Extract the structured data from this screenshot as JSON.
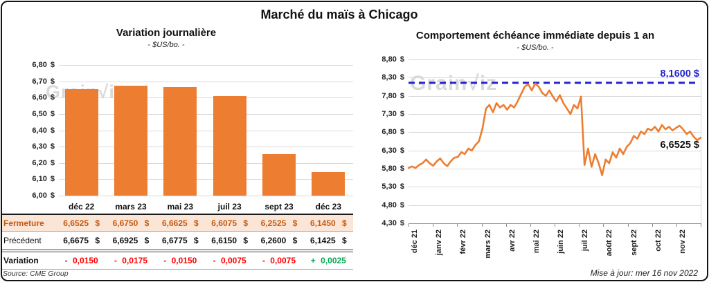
{
  "title": "Marché du maïs à Chicago",
  "left_chart": {
    "title": "Variation journalière",
    "subtitle": "- $US/bo. -",
    "watermark": "Grain√iz",
    "y_ticks": [
      "6,80 $",
      "6,70 $",
      "6,60 $",
      "6,50 $",
      "6,40 $",
      "6,30 $",
      "6,20 $",
      "6,10 $",
      "6,00 $"
    ]
  },
  "table": {
    "columns": [
      "",
      "déc 22",
      "mars 23",
      "mai 23",
      "juil 23",
      "sept 23",
      "déc 23"
    ],
    "close_row": {
      "label": "Fermeture",
      "values": [
        "6,6525 $",
        "6,6750 $",
        "6,6625 $",
        "6,6075 $",
        "6,2525 $",
        "6,1450 $"
      ]
    },
    "previous_row": {
      "label": "Précédent",
      "values": [
        "6,6675 $",
        "6,6925 $",
        "6,6775 $",
        "6,6150 $",
        "6,2600 $",
        "6,1425 $"
      ]
    },
    "variation_row": {
      "label": "Variation",
      "values": [
        "- 0,0150",
        "- 0,0175",
        "- 0,0150",
        "- 0,0075",
        "- 0,0075",
        "+ 0,0025"
      ],
      "trend": [
        "down",
        "down",
        "down",
        "down",
        "down",
        "up"
      ]
    },
    "source": "Source: CME Group"
  },
  "right_chart": {
    "title": "Comportement échéance immédiate depuis 1 an",
    "subtitle": "- $US/bo. -",
    "watermark": "Grain√iz",
    "y_ticks": [
      "8,80 $",
      "8,30 $",
      "7,80 $",
      "7,30 $",
      "6,80 $",
      "6,30 $",
      "5,80 $",
      "5,30 $",
      "4,80 $",
      "4,30 $"
    ],
    "x_ticks": [
      "déc 21",
      "janv 22",
      "févr 22",
      "mars 22",
      "avr 22",
      "mai 22",
      "juin 22",
      "juil 22",
      "août 22",
      "sept 22",
      "oct 22",
      "nov 22"
    ],
    "reference_label": "8,1600 $",
    "last_label": "6,6525 $",
    "updated": "Mise à jour: mer 16 nov 2022"
  },
  "colors": {
    "series_orange": "#ED7D31",
    "reference_blue": "#2222CC",
    "close_bg": "#FBE5D6",
    "close_text": "#C55A11",
    "negative_red": "#FF0000",
    "positive_green": "#00A550",
    "gridline": "#D9D9D9",
    "watermark_gray": "#C6C6C6"
  },
  "chart_data": [
    {
      "type": "bar",
      "title": "Variation journalière",
      "subtitle": "- $US/bo. -",
      "categories": [
        "déc 22",
        "mars 23",
        "mai 23",
        "juil 23",
        "sept 23",
        "déc 23"
      ],
      "values": [
        6.6525,
        6.675,
        6.6625,
        6.6075,
        6.2525,
        6.145
      ],
      "xlabel": "",
      "ylabel": "$US/bo.",
      "ylim": [
        6.0,
        6.8
      ],
      "ytick_step": 0.1,
      "grid": true,
      "bar_color": "#ED7D31"
    },
    {
      "type": "line",
      "title": "Comportement échéance immédiate depuis 1 an",
      "subtitle": "- $US/bo. -",
      "x_categories": [
        "déc 21",
        "janv 22",
        "févr 22",
        "mars 22",
        "avr 22",
        "mai 22",
        "juin 22",
        "juil 22",
        "août 22",
        "sept 22",
        "oct 22",
        "nov 22"
      ],
      "ylim": [
        4.3,
        8.8
      ],
      "ytick_step": 0.5,
      "grid": true,
      "line_color": "#ED7D31",
      "reference_line": 8.16,
      "reference_color": "#2222CC",
      "last_value": 6.6525,
      "values": [
        5.82,
        5.86,
        5.82,
        5.9,
        5.95,
        6.05,
        5.95,
        5.88,
        6.0,
        6.08,
        5.95,
        5.87,
        6.0,
        6.1,
        6.12,
        6.25,
        6.2,
        6.35,
        6.3,
        6.45,
        6.55,
        6.9,
        7.45,
        7.55,
        7.35,
        7.6,
        7.48,
        7.55,
        7.42,
        7.55,
        7.48,
        7.65,
        7.85,
        8.05,
        8.12,
        7.95,
        8.14,
        8.05,
        7.88,
        7.8,
        7.95,
        7.78,
        7.65,
        7.82,
        7.6,
        7.45,
        7.3,
        7.55,
        7.45,
        7.78,
        5.9,
        6.35,
        5.85,
        6.2,
        5.95,
        5.62,
        6.05,
        5.95,
        6.25,
        6.1,
        6.35,
        6.2,
        6.4,
        6.5,
        6.7,
        6.62,
        6.82,
        6.75,
        6.9,
        6.85,
        6.95,
        6.82,
        7.0,
        6.88,
        6.95,
        6.85,
        6.92,
        6.98,
        6.88,
        6.75,
        6.82,
        6.68,
        6.58,
        6.6525
      ]
    }
  ]
}
